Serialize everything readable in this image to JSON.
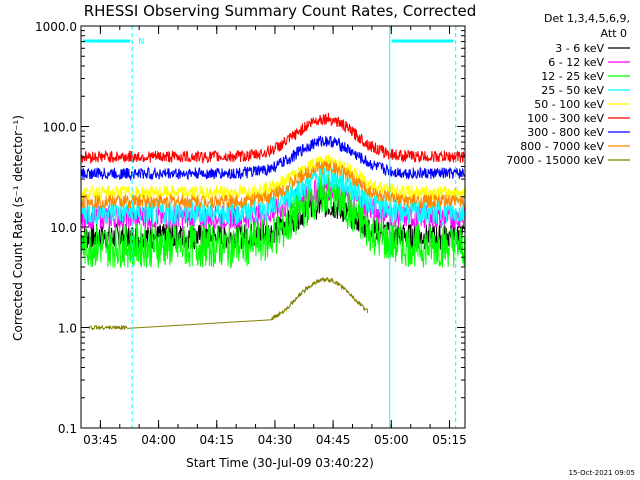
{
  "chart_data": {
    "type": "line",
    "title": "RHESSI Observing Summary Count Rates, Corrected",
    "xlabel": "Start Time (30-Jul-09 03:40:22)",
    "ylabel": "Corrected Count Rate (s⁻¹ detector⁻¹)",
    "y_scale": "log",
    "ylim": [
      0.1,
      1000
    ],
    "y_ticks": [
      {
        "value": 1000,
        "label": "1000.0"
      },
      {
        "value": 100,
        "label": "100.0"
      },
      {
        "value": 10,
        "label": "10.0"
      },
      {
        "value": 1,
        "label": "1.0"
      },
      {
        "value": 0.1,
        "label": "0.1"
      }
    ],
    "x_range_min": [
      0,
      99
    ],
    "x_ticks": [
      {
        "value": 5,
        "label": "03:45"
      },
      {
        "value": 20,
        "label": "04:00"
      },
      {
        "value": 35,
        "label": "04:15"
      },
      {
        "value": 50,
        "label": "04:30"
      },
      {
        "value": 65,
        "label": "04:45"
      },
      {
        "value": 80,
        "label": "05:00"
      },
      {
        "value": 95,
        "label": "05:15"
      }
    ],
    "legend_header": [
      "Det 1,3,4,5,6,9,",
      "Att 0"
    ],
    "legend_placement": "top-right outside",
    "series": [
      {
        "name": "3 - 6 keV",
        "color": "#000000",
        "base": 8.0,
        "peak": 16.5,
        "noise": 0.13
      },
      {
        "name": "6 - 12 keV",
        "color": "#ff00ff",
        "base": 12.5,
        "peak": 24.0,
        "noise": 0.12
      },
      {
        "name": "12 - 25 keV",
        "color": "#00ff00",
        "base": 6.5,
        "peak": 21.0,
        "noise": 0.22
      },
      {
        "name": "25 - 50 keV",
        "color": "#00ffff",
        "base": 14.0,
        "peak": 32.0,
        "noise": 0.13
      },
      {
        "name": "50 - 100 keV",
        "color": "#ffff00",
        "base": 22.0,
        "peak": 45.0,
        "noise": 0.07
      },
      {
        "name": "100 - 300 keV",
        "color": "#ff0000",
        "base": 50.0,
        "peak": 120.0,
        "noise": 0.06
      },
      {
        "name": "300 - 800 keV",
        "color": "#0000ff",
        "base": 34.0,
        "peak": 72.0,
        "noise": 0.06
      },
      {
        "name": "800 - 7000 keV",
        "color": "#ff8800",
        "base": 18.0,
        "peak": 40.0,
        "noise": 0.07
      },
      {
        "name": "7000 - 15000 keV",
        "color": "#808000",
        "base": 1.0,
        "peak": 3.0,
        "noise": 0.02
      }
    ],
    "night_intervals": [
      [
        -1.4,
        13.2
      ],
      [
        79.6,
        96.6
      ]
    ],
    "saa_intervals": [
      [
        -1.4,
        13.2
      ],
      [
        79.6,
        96.6
      ]
    ],
    "saa_label": "N",
    "grid": false,
    "timestamp": "15-Oct-2021 09:05"
  }
}
